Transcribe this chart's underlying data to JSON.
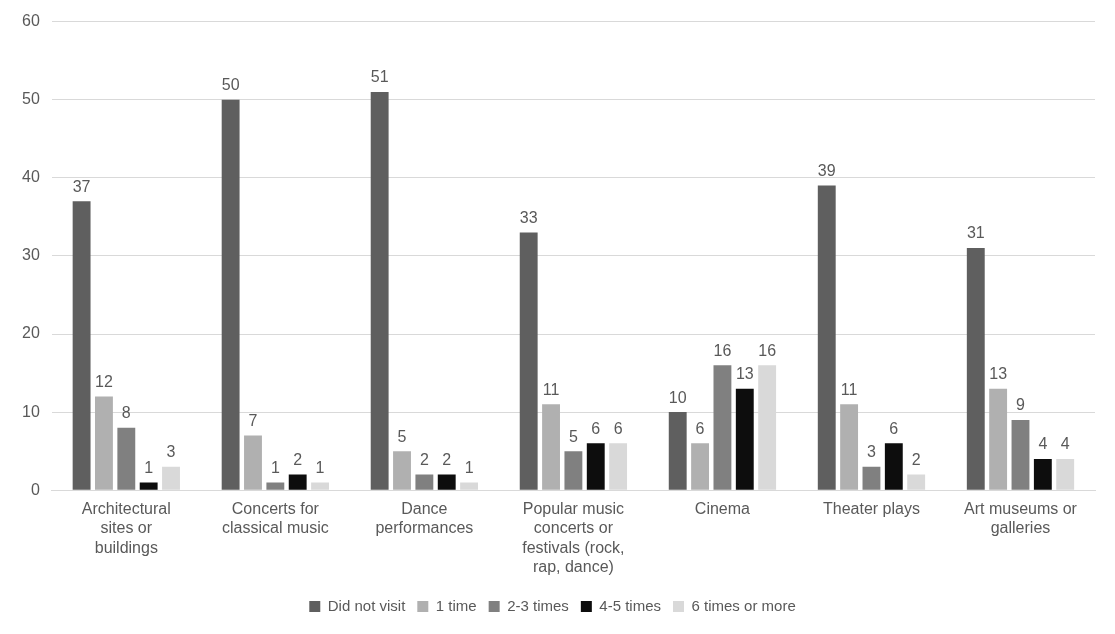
{
  "chart_data": {
    "type": "bar",
    "categories": [
      "Architectural sites or buildings",
      "Concerts for classical music",
      "Dance performances",
      "Popular music concerts or festivals (rock, rap, dance)",
      "Cinema",
      "Theater plays",
      "Art museums or galleries"
    ],
    "series": [
      {
        "name": "Did not visit",
        "color": "#5f5f5f",
        "values": [
          37,
          50,
          51,
          33,
          10,
          39,
          31
        ]
      },
      {
        "name": "1 time",
        "color": "#b0b0b0",
        "values": [
          12,
          7,
          5,
          11,
          6,
          11,
          13
        ]
      },
      {
        "name": "2-3 times",
        "color": "#808080",
        "values": [
          8,
          1,
          2,
          5,
          16,
          3,
          9
        ]
      },
      {
        "name": "4-5 times",
        "color": "#0d0d0d",
        "values": [
          1,
          2,
          2,
          6,
          13,
          6,
          4
        ]
      },
      {
        "name": "6 times or more",
        "color": "#d9d9d9",
        "values": [
          3,
          1,
          1,
          6,
          16,
          2,
          4
        ]
      }
    ],
    "ylim": [
      0,
      60
    ],
    "yticks": [
      0,
      10,
      20,
      30,
      40,
      50,
      60
    ],
    "grid": "y",
    "legend": "bottom",
    "data_labels": true
  }
}
